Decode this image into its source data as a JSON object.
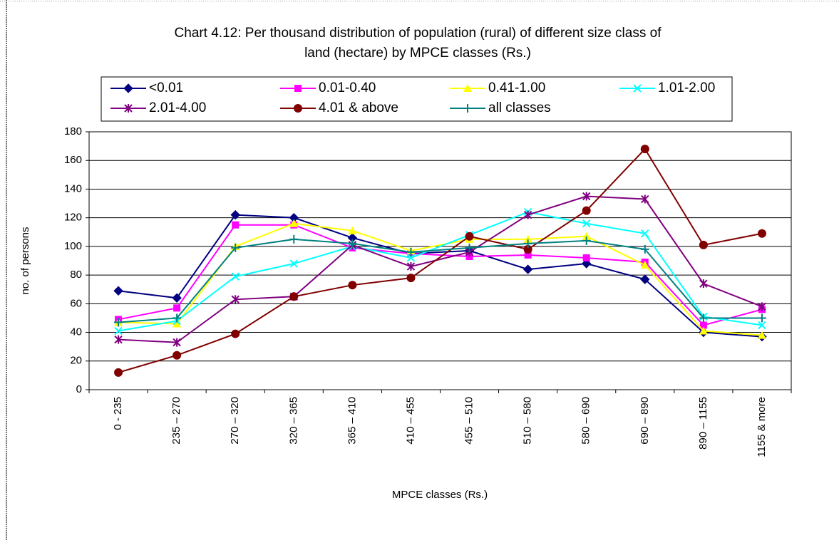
{
  "chart_data": {
    "type": "line",
    "title": "Chart 4.12: Per thousand distribution of population (rural) of different size class of",
    "subtitle": "land (hectare) by MPCE classes (Rs.)",
    "x_label": "MPCE classes (Rs.)",
    "y_label": "no. of persons",
    "categories": [
      "0 - 235",
      "235 – 270",
      "270 – 320",
      "320 – 365",
      "365 – 410",
      "410 – 455",
      "455 – 510",
      "510 – 580",
      "580 – 690",
      "690 – 890",
      "890 – 1155",
      "1155 & more"
    ],
    "series": [
      {
        "name": "<0.01",
        "color": "#000080",
        "marker": "diamond",
        "values": [
          69,
          64,
          122,
          120,
          106,
          95,
          97,
          84,
          88,
          77,
          40,
          37
        ]
      },
      {
        "name": "0.01-0.40",
        "color": "#ff00ff",
        "marker": "square",
        "values": [
          49,
          57,
          115,
          115,
          99,
          95,
          93,
          94,
          92,
          89,
          45,
          56
        ]
      },
      {
        "name": "0.41-1.00",
        "color": "#ffff00",
        "marker": "triangle",
        "values": [
          47,
          46,
          100,
          116,
          111,
          97,
          105,
          105,
          107,
          87,
          41,
          38
        ]
      },
      {
        "name": "1.01-2.00",
        "color": "#00ffff",
        "marker": "x",
        "values": [
          41,
          48,
          79,
          88,
          100,
          92,
          108,
          124,
          116,
          109,
          51,
          45
        ]
      },
      {
        "name": "2.01-4.00",
        "color": "#800080",
        "marker": "star",
        "values": [
          35,
          33,
          63,
          65,
          101,
          86,
          96,
          122,
          135,
          133,
          74,
          58
        ]
      },
      {
        "name": "4.01 & above",
        "color": "#800000",
        "marker": "circle",
        "values": [
          12,
          24,
          39,
          65,
          73,
          78,
          107,
          98,
          125,
          168,
          101,
          109
        ]
      },
      {
        "name": "all classes",
        "color": "#008080",
        "marker": "plus",
        "values": [
          47,
          50,
          99,
          105,
          102,
          96,
          99,
          102,
          104,
          98,
          50,
          50
        ]
      }
    ],
    "ylim": [
      0,
      180
    ],
    "yticks": [
      0,
      20,
      40,
      60,
      80,
      100,
      120,
      140,
      160,
      180
    ],
    "grid": true,
    "legend": "top"
  }
}
